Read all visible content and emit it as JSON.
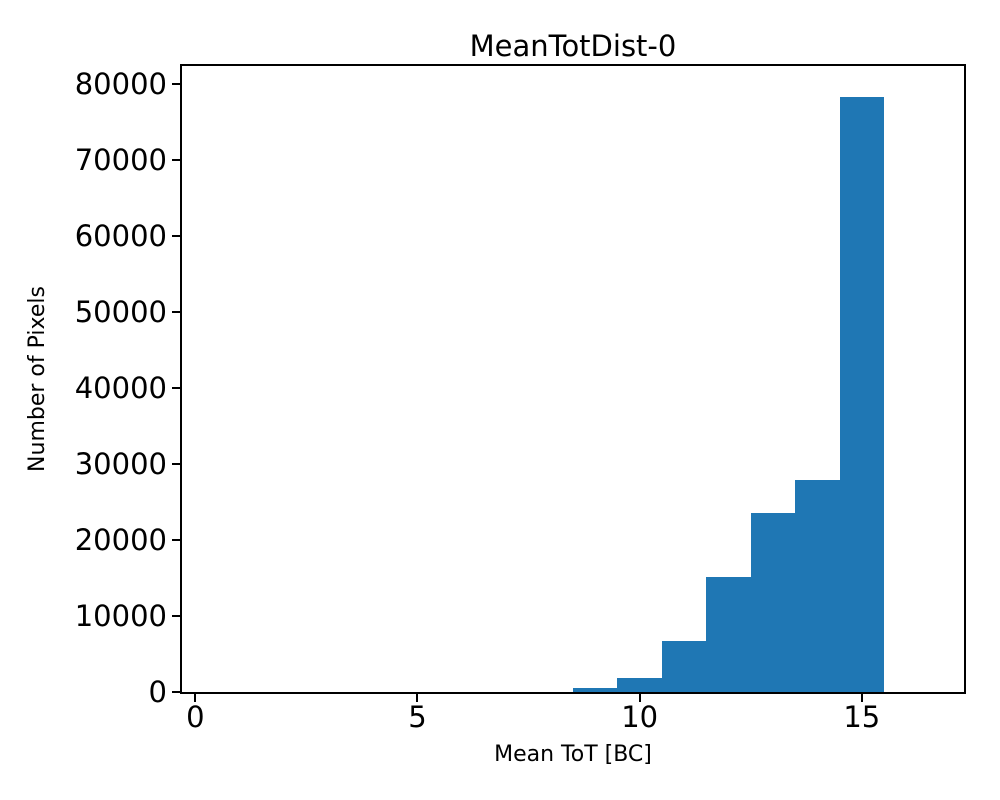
{
  "figure": {
    "background_color": "#ffffff",
    "axis_color": "#000000",
    "text_color": "#000000"
  },
  "chart_data": {
    "type": "bar",
    "chart_kind": "histogram",
    "title": "MeanTotDist-0",
    "xlabel": "Mean ToT [BC]",
    "ylabel": "Number of Pixels",
    "bin_edges": [
      8.5,
      9.5,
      10.5,
      11.5,
      12.5,
      13.5,
      14.5,
      15.5
    ],
    "values": [
      500,
      1850,
      6700,
      15100,
      23600,
      27900,
      78300
    ],
    "bar_color": "#1f77b4",
    "xlim": [
      -0.3,
      17.3
    ],
    "ylim": [
      0,
      82400
    ],
    "xticks": [
      0,
      5,
      10,
      15
    ],
    "yticks": [
      0,
      10000,
      20000,
      30000,
      40000,
      50000,
      60000,
      70000,
      80000
    ],
    "grid": "off",
    "legend": "none"
  }
}
